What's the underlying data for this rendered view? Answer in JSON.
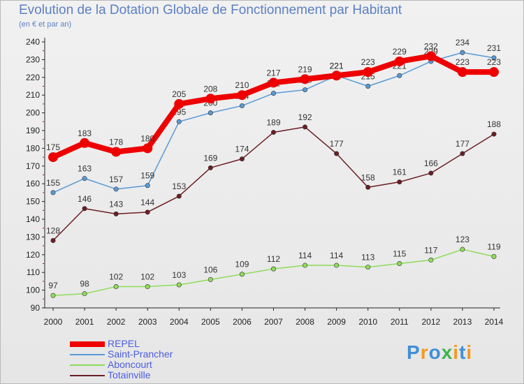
{
  "title": "Evolution de la Dotation Globale de Fonctionnement par Habitant",
  "subtitle": "(en € et par an)",
  "brand": {
    "letters": [
      {
        "ch": "P",
        "color": "#3f8fd6"
      },
      {
        "ch": "r",
        "color": "#f29a1f"
      },
      {
        "ch": "o",
        "color": "#3f8fd6"
      },
      {
        "ch": "x",
        "color": "#3cb54a"
      },
      {
        "ch": "i",
        "color": "#f29a1f"
      },
      {
        "ch": "t",
        "color": "#3f8fd6"
      },
      {
        "ch": "i",
        "color": "#f29a1f"
      }
    ]
  },
  "chart_data": {
    "type": "line",
    "title": "Evolution de la Dotation Globale de Fonctionnement par Habitant",
    "subtitle": "(en € et par an)",
    "xlabel": "",
    "ylabel": "",
    "categories": [
      "2000",
      "2001",
      "2002",
      "2003",
      "2004",
      "2005",
      "2006",
      "2007",
      "2008",
      "2009",
      "2010",
      "2011",
      "2012",
      "2013",
      "2014"
    ],
    "ylim": [
      90,
      240
    ],
    "yticks": [
      90,
      100,
      110,
      120,
      130,
      140,
      150,
      160,
      170,
      180,
      190,
      200,
      210,
      220,
      230,
      240
    ],
    "grid": false,
    "legend_position": "bottom-left",
    "series": [
      {
        "name": "Totainville",
        "color": "#6b1e24",
        "values": [
          128,
          146,
          143,
          144,
          153,
          169,
          174,
          189,
          192,
          177,
          158,
          161,
          166,
          177,
          188
        ]
      },
      {
        "name": "Aboncourt",
        "color": "#8fdc5a",
        "values": [
          97,
          98,
          102,
          102,
          103,
          106,
          109,
          112,
          114,
          114,
          113,
          115,
          117,
          123,
          119
        ]
      },
      {
        "name": "Saint-Prancher",
        "color": "#5a9ad6",
        "values": [
          155,
          163,
          157,
          159,
          195,
          200,
          204,
          211,
          213,
          221,
          215,
          221,
          229,
          234,
          231
        ]
      },
      {
        "name": "REPEL",
        "color": "#ee0000",
        "values": [
          175,
          183,
          178,
          180,
          205,
          208,
          210,
          217,
          219,
          221,
          223,
          229,
          232,
          223,
          223
        ]
      }
    ],
    "legend": [
      "REPEL",
      "Saint-Prancher",
      "Aboncourt",
      "Totainville"
    ]
  }
}
